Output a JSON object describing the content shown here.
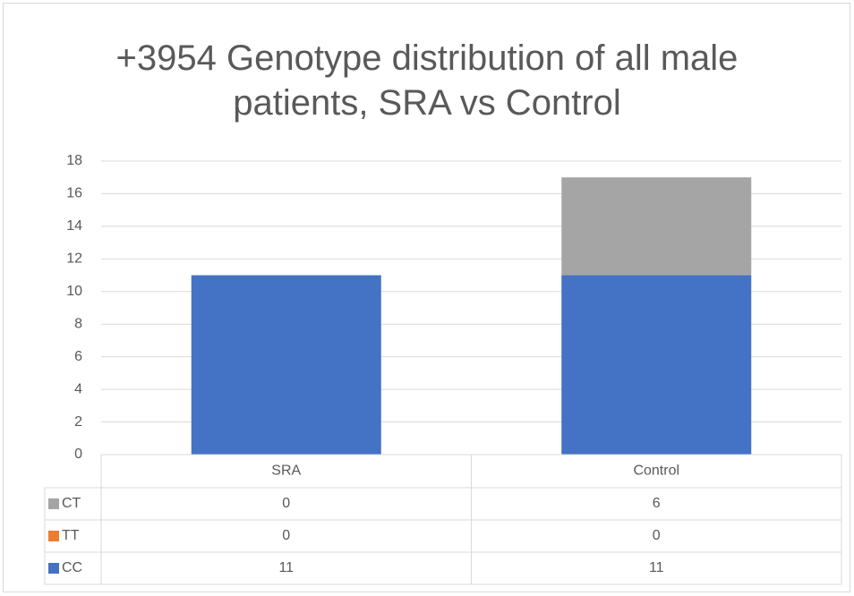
{
  "chart_data": {
    "type": "stacked_bar",
    "title": "+3954 Genotype distribution of all male patients, SRA vs Control",
    "categories": [
      "SRA",
      "Control"
    ],
    "series": [
      {
        "name": "CC",
        "color": "#4472c4",
        "values": [
          11,
          11
        ]
      },
      {
        "name": "TT",
        "color": "#ed7d31",
        "values": [
          0,
          0
        ]
      },
      {
        "name": "CT",
        "color": "#a5a5a5",
        "values": [
          0,
          6
        ]
      }
    ],
    "ylim": [
      0,
      18
    ],
    "yticks": [
      0,
      2,
      4,
      6,
      8,
      10,
      12,
      14,
      16,
      18
    ],
    "grid": true,
    "data_table": true
  }
}
